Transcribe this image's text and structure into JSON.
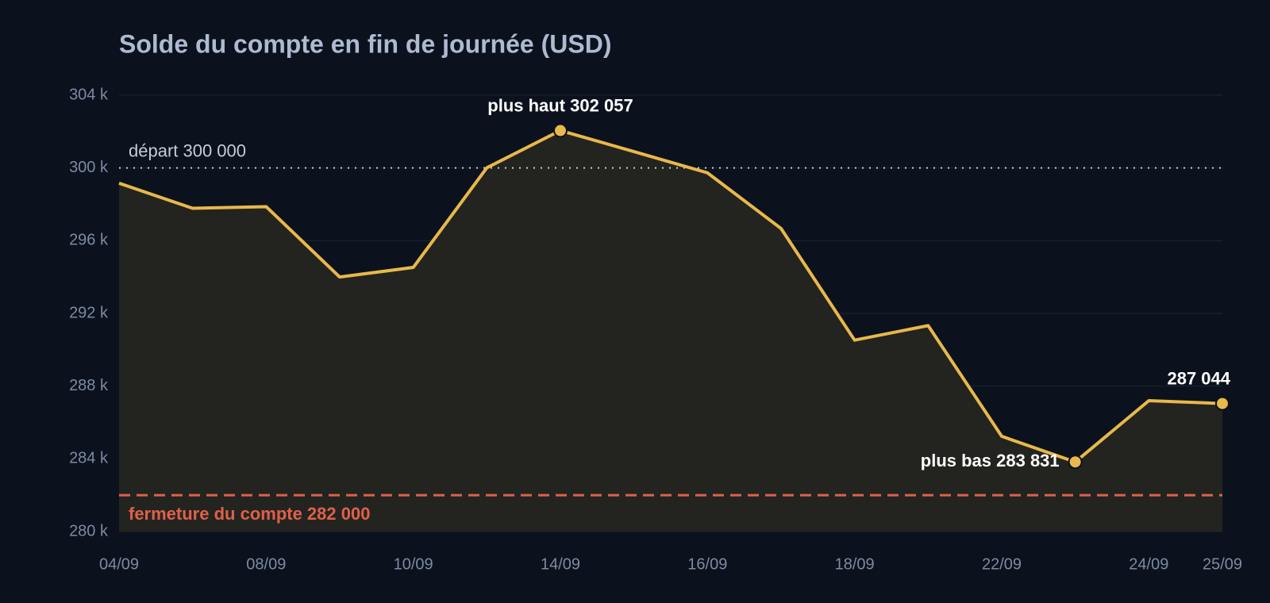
{
  "chart_data": {
    "type": "line",
    "title": "Solde du compte en fin de journée (USD)",
    "categories": [
      "04/09",
      null,
      "08/09",
      null,
      "10/09",
      null,
      "14/09",
      null,
      "16/09",
      null,
      "18/09",
      null,
      "22/09",
      null,
      "24/09",
      "25/09"
    ],
    "series": [
      {
        "name": "Solde",
        "color": "#e8b84a",
        "values": [
          299160,
          297780,
          297870,
          294000,
          294530,
          300010,
          302057,
          300900,
          299730,
          296670,
          290530,
          291330,
          285240,
          283831,
          287200,
          287044
        ]
      }
    ],
    "area_fill": "#232420",
    "ylim": [
      280000,
      304000
    ],
    "yticks": [
      {
        "value": 280000,
        "label": "280 k"
      },
      {
        "value": 284000,
        "label": "284 k"
      },
      {
        "value": 288000,
        "label": "288 k"
      },
      {
        "value": 292000,
        "label": "292 k"
      },
      {
        "value": 296000,
        "label": "296 k"
      },
      {
        "value": 300000,
        "label": "300 k"
      },
      {
        "value": 304000,
        "label": "304 k"
      }
    ],
    "grid": true,
    "reference_lines": [
      {
        "label": "départ 300 000",
        "value": 300000,
        "style": "dotted",
        "color": "#c6ccd6"
      },
      {
        "label": "fermeture du compte 282 000",
        "value": 282000,
        "style": "dashed",
        "color": "#e0604a"
      }
    ],
    "point_labels": [
      {
        "label": "plus haut 302 057",
        "value": 302057,
        "position": "above"
      },
      {
        "label": "plus bas 283 831",
        "value": 283831,
        "position": "left"
      },
      {
        "label": "287 044",
        "value": 287044,
        "position": "above-left"
      }
    ]
  }
}
